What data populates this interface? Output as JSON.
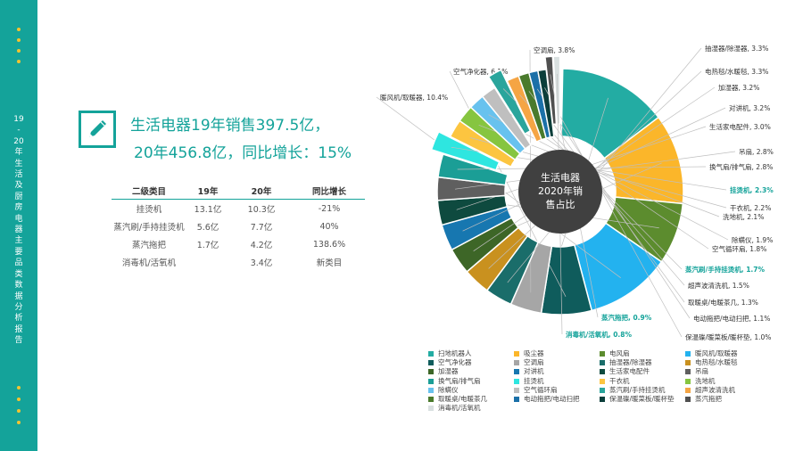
{
  "sidebar": {
    "title_chars": [
      "19",
      "-",
      "20",
      "年",
      "生",
      "活",
      "及",
      "厨",
      "房",
      "电",
      "器",
      "主",
      "要",
      "品",
      "类",
      "数",
      "据",
      "分",
      "析",
      "报",
      "告"
    ]
  },
  "headline": {
    "line1": "生活电器19年销售397.5亿，",
    "line2": "20年456.8亿，同比增长：15%"
  },
  "table": {
    "headers": [
      "二级类目",
      "19年",
      "20年",
      "同比增长"
    ],
    "rows": [
      [
        "挂烫机",
        "13.1亿",
        "10.3亿",
        "-21%"
      ],
      [
        "蒸汽刷/手持挂烫机",
        "5.6亿",
        "7.7亿",
        "40%"
      ],
      [
        "蒸汽拖把",
        "1.7亿",
        "4.2亿",
        "138.6%"
      ],
      [
        "消毒机/活氧机",
        "",
        "3.4亿",
        "新类目"
      ]
    ]
  },
  "colors": {
    "accent": "#14a39a",
    "dots": "#f4c430"
  },
  "chart_data": {
    "type": "pie",
    "donut": true,
    "center_label": "生活电器\n2020年销\n售占比",
    "unit": "%",
    "slices": [
      {
        "name": "扫地机器人",
        "value": 13.3,
        "label": "扫地机器人, 13.3%",
        "color": "#23aca3"
      },
      {
        "name": "吸尘器",
        "value": 11.0,
        "label": "吸尘器, 11.0%",
        "color": "#fbb62a"
      },
      {
        "name": "电风扇",
        "value": 7.5,
        "label": "电风扇, 7.5%",
        "color": "#5c8c2e"
      },
      {
        "name": "暖风机/取暖器",
        "value": 10.4,
        "label": "暖风机/取暖器, 10.4%",
        "color": "#23b2ef"
      },
      {
        "name": "空气净化器",
        "value": 6.1,
        "label": "空气净化器, 6.1%",
        "color": "#0f5c5c"
      },
      {
        "name": "空调扇",
        "value": 3.8,
        "label": "空调扇, 3.8%",
        "color": "#a6a6a6"
      },
      {
        "name": "抽湿器/除湿器",
        "value": 3.3,
        "label": "抽湿器/除湿器, 3.3%",
        "color": "#1a6d6a"
      },
      {
        "name": "电热毯/水暖毯",
        "value": 3.3,
        "label": "电热毯/水暖毯, 3.3%",
        "color": "#c9911f"
      },
      {
        "name": "加湿器",
        "value": 3.2,
        "label": "加湿器, 3.2%",
        "color": "#3d6627"
      },
      {
        "name": "对讲机",
        "value": 3.2,
        "label": "对讲机, 3.2%",
        "color": "#1777b0"
      },
      {
        "name": "生活家电配件",
        "value": 3.0,
        "label": "生活家电配件, 3.0%",
        "color": "#0e4a3f"
      },
      {
        "name": "吊扇",
        "value": 2.8,
        "label": "吊扇, 2.8%",
        "color": "#5f5f5f"
      },
      {
        "name": "换气扇/排气扇",
        "value": 2.8,
        "label": "换气扇/排气扇, 2.8%",
        "color": "#1b9e96"
      },
      {
        "name": "挂烫机",
        "value": 2.3,
        "label": "挂烫机, 2.3%",
        "color": "#2ee6e0",
        "highlight": true
      },
      {
        "name": "干衣机",
        "value": 2.2,
        "label": "干衣机, 2.2%",
        "color": "#fcc540"
      },
      {
        "name": "洗地机",
        "value": 2.1,
        "label": "洗地机, 2.1%",
        "color": "#86c540"
      },
      {
        "name": "除螨仪",
        "value": 1.9,
        "label": "除螨仪, 1.9%",
        "color": "#68c2ee"
      },
      {
        "name": "空气循环扇",
        "value": 1.8,
        "label": "空气循环扇, 1.8%",
        "color": "#bfbfbf"
      },
      {
        "name": "蒸汽刷/手持挂烫机",
        "value": 1.7,
        "label": "蒸汽刷/手持挂烫机, 1.7%",
        "color": "#2aa59c",
        "highlight": true
      },
      {
        "name": "超声波清洗机",
        "value": 1.5,
        "label": "超声波清洗机, 1.5%",
        "color": "#f5a544"
      },
      {
        "name": "取暖桌/电暖茶几",
        "value": 1.3,
        "label": "取暖桌/电暖茶几, 1.3%",
        "color": "#4a7a2c"
      },
      {
        "name": "电动拖把/电动扫把",
        "value": 1.1,
        "label": "电动拖把/电动扫把, 1.1%",
        "color": "#1b70a8"
      },
      {
        "name": "保温碟/暖菜板/暖杯垫",
        "value": 1.0,
        "label": "保温碟/暖菜板/暖杯垫, 1.0%",
        "color": "#0b3e3a"
      },
      {
        "name": "蒸汽拖把",
        "value": 0.9,
        "label": "蒸汽拖把, 0.9%",
        "color": "#505050",
        "highlight": true
      },
      {
        "name": "消毒机/活氧机",
        "value": 0.8,
        "label": "消毒机/活氧机, 0.8%",
        "color": "#d9e0e0",
        "highlight": true
      }
    ]
  }
}
